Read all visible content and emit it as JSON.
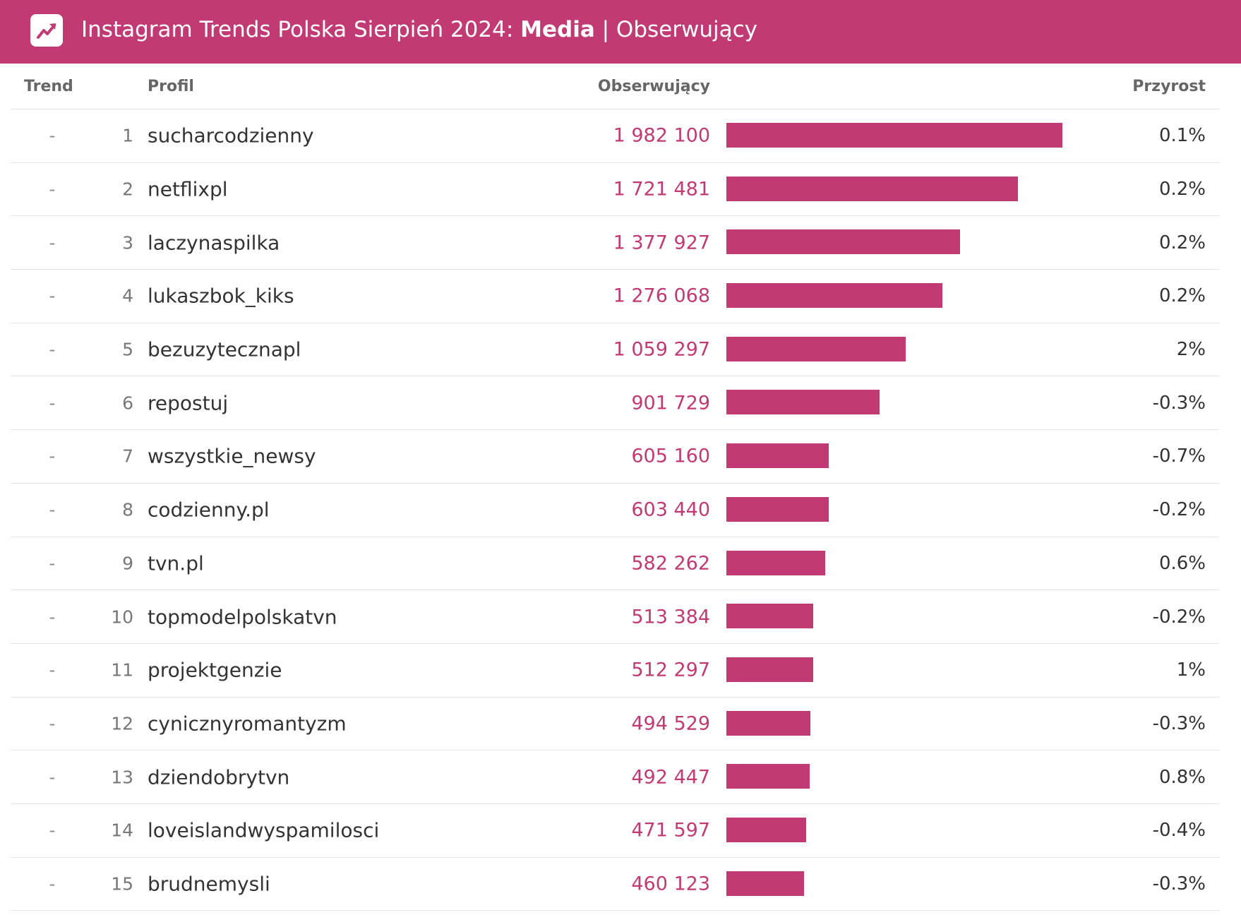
{
  "header": {
    "title_prefix": "Instagram Trends Polska Sierpień 2024: ",
    "title_bold": "Media",
    "title_suffix": " | Obserwujący",
    "icon": "trending-up-icon"
  },
  "colors": {
    "accent": "#c23a73",
    "text": "#333333",
    "muted": "#666666"
  },
  "columns": {
    "trend": "Trend",
    "profile": "Profil",
    "followers": "Obserwujący",
    "growth": "Przyrost"
  },
  "chart_data": {
    "type": "bar",
    "title": "Instagram Trends Polska Sierpień 2024: Media | Obserwujący",
    "orientation": "horizontal",
    "xlim": [
      0,
      1982100
    ],
    "rows": [
      {
        "trend": "-",
        "rank": "1",
        "profile": "sucharcodzienny",
        "followers_label": "1 982 100",
        "followers": 1982100,
        "growth": "0.1%"
      },
      {
        "trend": "-",
        "rank": "2",
        "profile": "netflixpl",
        "followers_label": "1 721 481",
        "followers": 1721481,
        "growth": "0.2%"
      },
      {
        "trend": "-",
        "rank": "3",
        "profile": "laczynaspilka",
        "followers_label": "1 377 927",
        "followers": 1377927,
        "growth": "0.2%"
      },
      {
        "trend": "-",
        "rank": "4",
        "profile": "lukaszbok_kiks",
        "followers_label": "1 276 068",
        "followers": 1276068,
        "growth": "0.2%"
      },
      {
        "trend": "-",
        "rank": "5",
        "profile": "bezuzytecznapl",
        "followers_label": "1 059 297",
        "followers": 1059297,
        "growth": "2%"
      },
      {
        "trend": "-",
        "rank": "6",
        "profile": "repostuj",
        "followers_label": "901 729",
        "followers": 901729,
        "growth": "-0.3%"
      },
      {
        "trend": "-",
        "rank": "7",
        "profile": "wszystkie_newsy",
        "followers_label": "605 160",
        "followers": 605160,
        "growth": "-0.7%"
      },
      {
        "trend": "-",
        "rank": "8",
        "profile": "codzienny.pl",
        "followers_label": "603 440",
        "followers": 603440,
        "growth": "-0.2%"
      },
      {
        "trend": "-",
        "rank": "9",
        "profile": "tvn.pl",
        "followers_label": "582 262",
        "followers": 582262,
        "growth": "0.6%"
      },
      {
        "trend": "-",
        "rank": "10",
        "profile": "topmodelpolskatvn",
        "followers_label": "513 384",
        "followers": 513384,
        "growth": "-0.2%"
      },
      {
        "trend": "-",
        "rank": "11",
        "profile": "projektgenzie",
        "followers_label": "512 297",
        "followers": 512297,
        "growth": "1%"
      },
      {
        "trend": "-",
        "rank": "12",
        "profile": "cynicznyromantyzm",
        "followers_label": "494 529",
        "followers": 494529,
        "growth": "-0.3%"
      },
      {
        "trend": "-",
        "rank": "13",
        "profile": "dziendobrytvn",
        "followers_label": "492 447",
        "followers": 492447,
        "growth": "0.8%"
      },
      {
        "trend": "-",
        "rank": "14",
        "profile": "loveislandwyspamilosci",
        "followers_label": "471 597",
        "followers": 471597,
        "growth": "-0.4%"
      },
      {
        "trend": "-",
        "rank": "15",
        "profile": "brudnemysli",
        "followers_label": "460 123",
        "followers": 460123,
        "growth": "-0.3%"
      }
    ]
  }
}
